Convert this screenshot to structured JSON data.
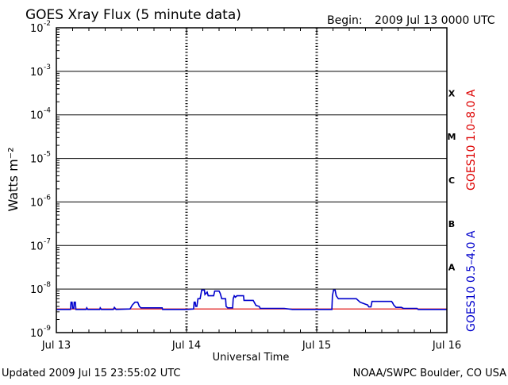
{
  "header": {
    "title": "GOES Xray Flux (5 minute data)",
    "begin_label": "Begin:",
    "begin_value": "2009 Jul 13 0000 UTC"
  },
  "footer": {
    "updated": "Updated 2009 Jul 15 23:55:02 UTC",
    "source": "NOAA/SWPC Boulder, CO USA"
  },
  "chart_data": {
    "type": "line",
    "title": "GOES Xray Flux (5 minute data)",
    "xlabel": "Universal Time",
    "ylabel": "Watts m⁻²",
    "yscale": "log",
    "ylim": [
      1e-09,
      0.01
    ],
    "xlim": [
      0,
      72
    ],
    "x_unit_note": "hours from 2009 Jul 13 0000 UTC",
    "x_ticks": [
      {
        "x": 0,
        "label": "Jul 13"
      },
      {
        "x": 24,
        "label": "Jul 14"
      },
      {
        "x": 48,
        "label": "Jul 15"
      },
      {
        "x": 72,
        "label": "Jul 16"
      }
    ],
    "y_ticks": [
      {
        "exp": -9,
        "label": "10",
        "sup": "-9"
      },
      {
        "exp": -8,
        "label": "10",
        "sup": "-8"
      },
      {
        "exp": -7,
        "label": "10",
        "sup": "-7"
      },
      {
        "exp": -6,
        "label": "10",
        "sup": "-6"
      },
      {
        "exp": -5,
        "label": "10",
        "sup": "-5"
      },
      {
        "exp": -4,
        "label": "10",
        "sup": "-4"
      },
      {
        "exp": -3,
        "label": "10",
        "sup": "-3"
      },
      {
        "exp": -2,
        "label": "10",
        "sup": "-2"
      }
    ],
    "flare_classes": [
      {
        "label": "A",
        "exp": -7.5
      },
      {
        "label": "B",
        "exp": -6.5
      },
      {
        "label": "C",
        "exp": -5.5
      },
      {
        "label": "M",
        "exp": -4.5
      },
      {
        "label": "X",
        "exp": -3.5
      }
    ],
    "grid": true,
    "series": [
      {
        "name": "GOES10 1.0–8.0 A",
        "color": "#dd0000",
        "points": [
          [
            0,
            3.5e-09
          ],
          [
            72,
            3.5e-09
          ]
        ]
      },
      {
        "name": "GOES10 0.5–4.0 A",
        "color": "#0000cc",
        "points": [
          [
            0,
            3.4e-09
          ],
          [
            2.6,
            3.4e-09
          ],
          [
            2.7,
            5e-09
          ],
          [
            2.9,
            5e-09
          ],
          [
            3.0,
            3.6e-09
          ],
          [
            3.2,
            3.6e-09
          ],
          [
            3.3,
            5e-09
          ],
          [
            3.5,
            5e-09
          ],
          [
            3.6,
            3.4e-09
          ],
          [
            5.5,
            3.4e-09
          ],
          [
            5.6,
            3.7e-09
          ],
          [
            5.8,
            3.4e-09
          ],
          [
            8.0,
            3.4e-09
          ],
          [
            8.1,
            3.7e-09
          ],
          [
            8.3,
            3.4e-09
          ],
          [
            10.5,
            3.4e-09
          ],
          [
            10.7,
            3.8e-09
          ],
          [
            11.0,
            3.4e-09
          ],
          [
            13.6,
            3.5e-09
          ],
          [
            14.0,
            4.3e-09
          ],
          [
            14.5,
            5e-09
          ],
          [
            15.0,
            5e-09
          ],
          [
            15.3,
            4e-09
          ],
          [
            15.6,
            3.7e-09
          ],
          [
            16.0,
            3.7e-09
          ],
          [
            19.5,
            3.7e-09
          ],
          [
            19.6,
            3.4e-09
          ],
          [
            24.0,
            3.4e-09
          ],
          [
            25.3,
            3.5e-09
          ],
          [
            25.4,
            5e-09
          ],
          [
            25.6,
            5e-09
          ],
          [
            25.7,
            4e-09
          ],
          [
            25.9,
            4e-09
          ],
          [
            26.1,
            6e-09
          ],
          [
            26.5,
            6e-09
          ],
          [
            26.6,
            7e-09
          ],
          [
            26.8,
            9.5e-09
          ],
          [
            27.3,
            9.5e-09
          ],
          [
            27.4,
            7.5e-09
          ],
          [
            27.8,
            8.5e-09
          ],
          [
            28.0,
            7e-09
          ],
          [
            29.0,
            7e-09
          ],
          [
            29.2,
            9e-09
          ],
          [
            30.0,
            9e-09
          ],
          [
            30.2,
            8e-09
          ],
          [
            30.5,
            6e-09
          ],
          [
            31.2,
            6e-09
          ],
          [
            31.3,
            4e-09
          ],
          [
            31.6,
            3.7e-09
          ],
          [
            32.5,
            3.7e-09
          ],
          [
            32.6,
            6e-09
          ],
          [
            32.8,
            7e-09
          ],
          [
            33.0,
            6.5e-09
          ],
          [
            33.3,
            7e-09
          ],
          [
            34.5,
            7e-09
          ],
          [
            34.6,
            5.5e-09
          ],
          [
            36.3,
            5.5e-09
          ],
          [
            36.8,
            4.2e-09
          ],
          [
            37.4,
            4e-09
          ],
          [
            37.6,
            3.6e-09
          ],
          [
            42.0,
            3.6e-09
          ],
          [
            43.5,
            3.4e-09
          ],
          [
            48.0,
            3.4e-09
          ],
          [
            50.8,
            3.4e-09
          ],
          [
            50.9,
            7e-09
          ],
          [
            51.1,
            9.5e-09
          ],
          [
            51.4,
            9.5e-09
          ],
          [
            51.6,
            7e-09
          ],
          [
            52.0,
            6e-09
          ],
          [
            55.3,
            6e-09
          ],
          [
            56.0,
            5e-09
          ],
          [
            57.0,
            4.5e-09
          ],
          [
            57.4,
            4.3e-09
          ],
          [
            57.6,
            3.9e-09
          ],
          [
            58.0,
            3.9e-09
          ],
          [
            58.2,
            5.2e-09
          ],
          [
            61.8,
            5.2e-09
          ],
          [
            62.0,
            4.8e-09
          ],
          [
            62.2,
            4.3e-09
          ],
          [
            62.6,
            3.8e-09
          ],
          [
            63.6,
            3.8e-09
          ],
          [
            64.0,
            3.6e-09
          ],
          [
            66.5,
            3.6e-09
          ],
          [
            66.7,
            3.4e-09
          ],
          [
            72,
            3.4e-09
          ]
        ]
      }
    ]
  }
}
